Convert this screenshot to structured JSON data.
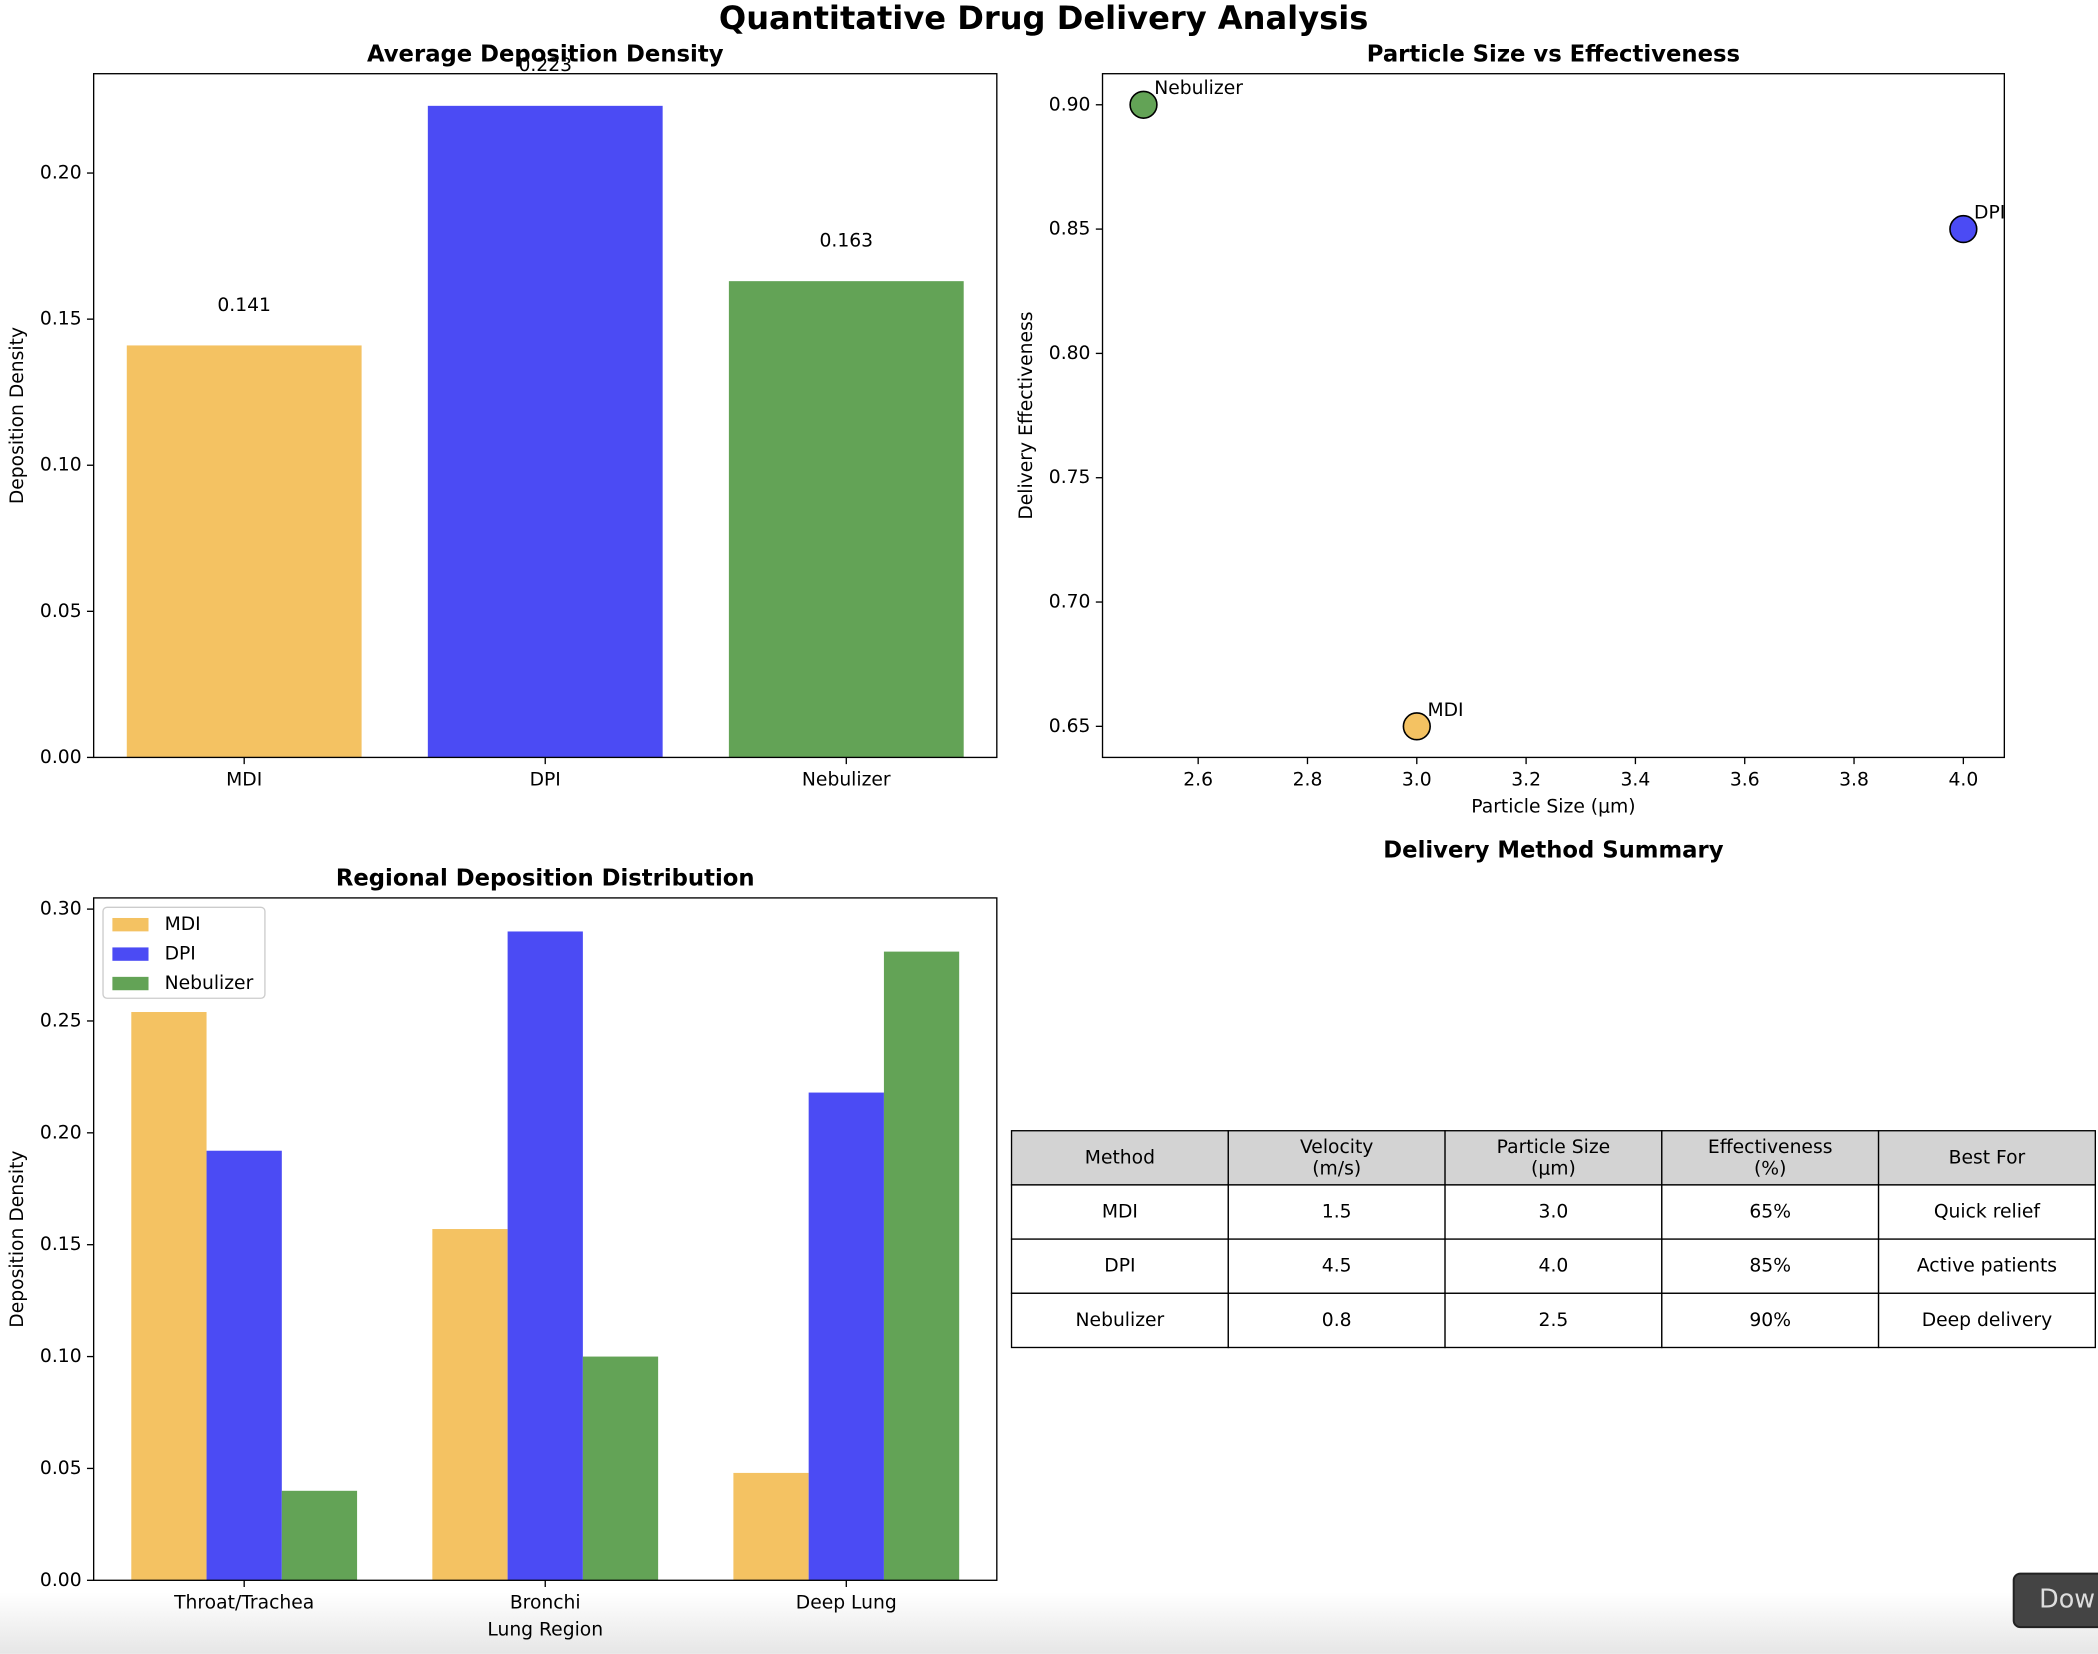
{
  "title": "Quantitative Drug Delivery Analysis",
  "chart_data": [
    {
      "type": "bar",
      "title": "Average Deposition Density",
      "ylabel": "Deposition Density",
      "categories": [
        "MDI",
        "DPI",
        "Nebulizer"
      ],
      "values": [
        0.141,
        0.223,
        0.163
      ],
      "colors": [
        "#f4c262",
        "#4b4bf4",
        "#63a356"
      ],
      "ylim": [
        0,
        0.234
      ],
      "yticks": [
        {
          "value": 0,
          "label": "0.00"
        },
        {
          "value": 0.05,
          "label": "0.05"
        },
        {
          "value": 0.1,
          "label": "0.10"
        },
        {
          "value": 0.15,
          "label": "0.15"
        },
        {
          "value": 0.2,
          "label": "0.20"
        }
      ]
    },
    {
      "type": "scatter",
      "title": "Particle Size vs Effectiveness",
      "xlabel": "Particle Size (μm)",
      "ylabel": "Delivery Effectiveness",
      "labels": [
        "MDI",
        "DPI",
        "Nebulizer"
      ],
      "x": [
        3.0,
        4.0,
        2.5
      ],
      "y": [
        0.65,
        0.85,
        0.9
      ],
      "colors": [
        "#f4c262",
        "#4b4bf4",
        "#63a356"
      ],
      "xlim": [
        2.425,
        4.075
      ],
      "ylim": [
        0.6375,
        0.9125
      ],
      "xticks": [
        2.6,
        2.8,
        {
          "value": 3,
          "label": "3.0"
        },
        3.2,
        3.4,
        3.6,
        3.8,
        {
          "value": 4,
          "label": "4.0"
        }
      ],
      "yticks": [
        0.65,
        {
          "value": 0.7,
          "label": "0.70"
        },
        0.75,
        {
          "value": 0.8,
          "label": "0.80"
        },
        0.85,
        {
          "value": 0.9,
          "label": "0.90"
        }
      ]
    },
    {
      "type": "grouped_bar",
      "title": "Regional Deposition Distribution",
      "xlabel": "Lung Region",
      "ylabel": "Deposition Density",
      "categories": [
        "Throat/Trachea",
        "Bronchi",
        "Deep Lung"
      ],
      "series": [
        {
          "name": "MDI",
          "color": "#f4c262",
          "values": [
            0.254,
            0.157,
            0.048
          ]
        },
        {
          "name": "DPI",
          "color": "#4b4bf4",
          "values": [
            0.192,
            0.29,
            0.218
          ]
        },
        {
          "name": "Nebulizer",
          "color": "#63a356",
          "values": [
            0.04,
            0.1,
            0.281
          ]
        }
      ],
      "legend": "upper left",
      "ylim": [
        0,
        0.305
      ],
      "yticks": [
        {
          "value": 0,
          "label": "0.00"
        },
        {
          "value": 0.05,
          "label": "0.05"
        },
        {
          "value": 0.1,
          "label": "0.10"
        },
        {
          "value": 0.15,
          "label": "0.15"
        },
        {
          "value": 0.2,
          "label": "0.20"
        },
        {
          "value": 0.25,
          "label": "0.25"
        },
        {
          "value": 0.3,
          "label": "0.30"
        }
      ]
    }
  ],
  "table": {
    "title": "Delivery Method Summary",
    "columns": [
      "Method",
      "Velocity\n(m/s)",
      "Particle Size\n(μm)",
      "Effectiveness\n(%)",
      "Best For"
    ],
    "rows": [
      [
        "MDI",
        "1.5",
        "3.0",
        "65%",
        "Quick relief"
      ],
      [
        "DPI",
        "4.5",
        "4.0",
        "85%",
        "Active patients"
      ],
      [
        "Nebulizer",
        "0.8",
        "2.5",
        "90%",
        "Deep delivery"
      ]
    ]
  },
  "download_button": "Dow"
}
